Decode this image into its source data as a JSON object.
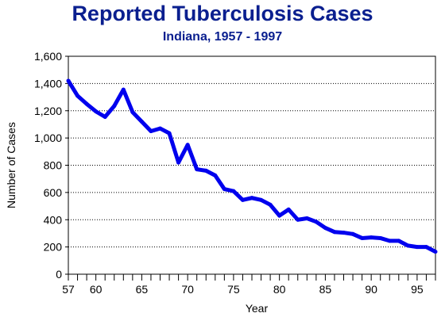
{
  "chart_data": {
    "type": "line",
    "title": "Reported Tuberculosis Cases",
    "subtitle": "Indiana, 1957 - 1997",
    "xlabel": "Year",
    "ylabel": "Number of Cases",
    "xlim": [
      1957,
      1997
    ],
    "ylim": [
      0,
      1600
    ],
    "y_ticks": [
      0,
      200,
      400,
      600,
      800,
      1000,
      1200,
      1400,
      1600
    ],
    "y_tick_labels": [
      "0",
      "200",
      "400",
      "600",
      "800",
      "1,000",
      "1,200",
      "1,400",
      "1,600"
    ],
    "x_tick_years": [
      1957,
      1958,
      1959,
      1960,
      1961,
      1962,
      1963,
      1964,
      1965,
      1966,
      1967,
      1968,
      1969,
      1970,
      1971,
      1972,
      1973,
      1974,
      1975,
      1976,
      1977,
      1978,
      1979,
      1980,
      1981,
      1982,
      1983,
      1984,
      1985,
      1986,
      1987,
      1988,
      1989,
      1990,
      1991,
      1992,
      1993,
      1994,
      1995,
      1996,
      1997
    ],
    "x_label_years": [
      1957,
      1960,
      1965,
      1970,
      1975,
      1980,
      1985,
      1990,
      1995
    ],
    "x_tick_labels": [
      "57",
      "60",
      "65",
      "70",
      "75",
      "80",
      "85",
      "90",
      "95"
    ],
    "grid": "horizontal dotted",
    "series_color": "#0000ee",
    "x": [
      1957,
      1958,
      1959,
      1960,
      1961,
      1962,
      1963,
      1964,
      1965,
      1966,
      1967,
      1968,
      1969,
      1970,
      1971,
      1972,
      1973,
      1974,
      1975,
      1976,
      1977,
      1978,
      1979,
      1980,
      1981,
      1982,
      1983,
      1984,
      1985,
      1986,
      1987,
      1988,
      1989,
      1990,
      1991,
      1992,
      1993,
      1994,
      1995,
      1996,
      1997
    ],
    "values": [
      1420,
      1310,
      1250,
      1195,
      1155,
      1235,
      1355,
      1190,
      1120,
      1050,
      1070,
      1035,
      820,
      950,
      770,
      760,
      725,
      625,
      610,
      545,
      560,
      545,
      510,
      430,
      475,
      400,
      410,
      385,
      340,
      310,
      305,
      295,
      265,
      270,
      265,
      245,
      245,
      210,
      200,
      200,
      165
    ]
  }
}
